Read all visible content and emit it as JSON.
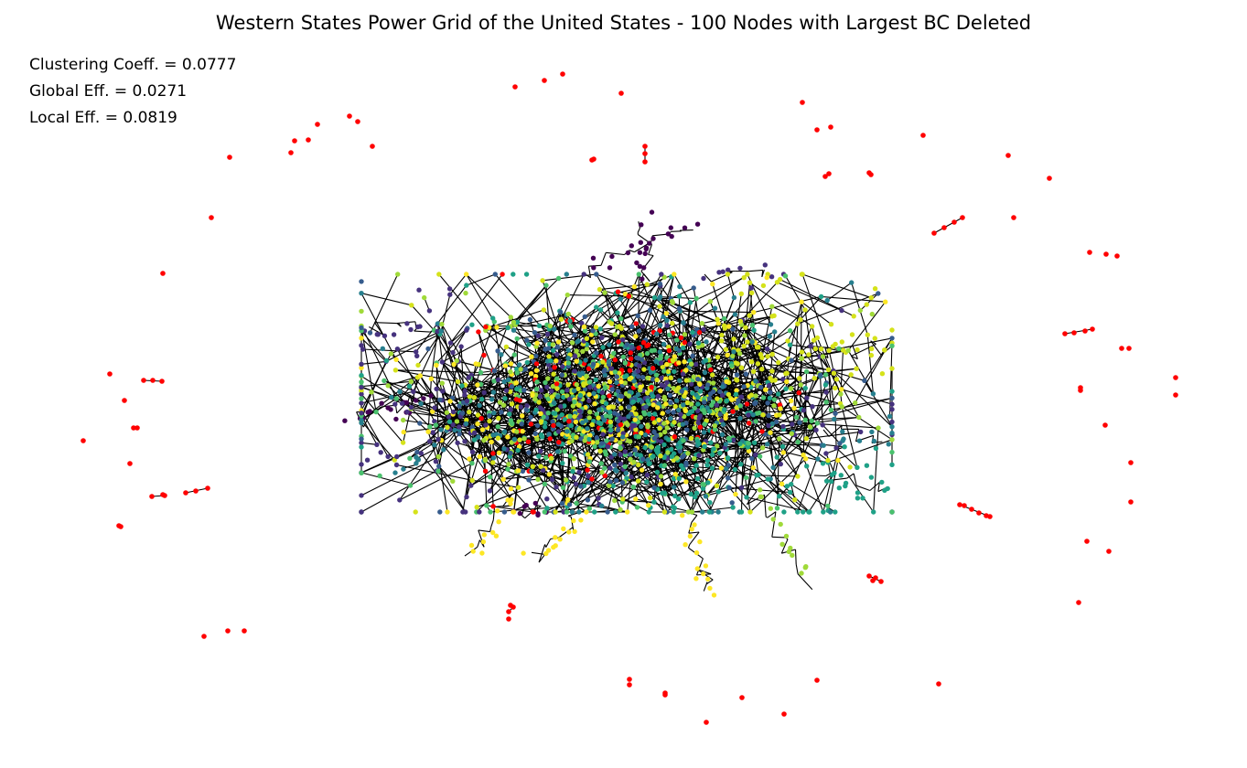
{
  "figure": {
    "title": "Western States Power Grid of the United States - 100 Nodes with Largest BC Deleted",
    "metrics": [
      "Clustering Coeff. = 0.0777",
      "Global Eff. = 0.0271",
      "Local Eff. = 0.0819"
    ]
  },
  "graph": {
    "edge_color": "#000000",
    "isolated_node_color": "#ff0000",
    "component_colors": [
      "#440154",
      "#46327e",
      "#365c8d",
      "#277f8e",
      "#1fa187",
      "#4ac16d",
      "#a0da39",
      "#d5e21a",
      "#fde725",
      "#ff0000"
    ],
    "palette_name": "viridis"
  }
}
